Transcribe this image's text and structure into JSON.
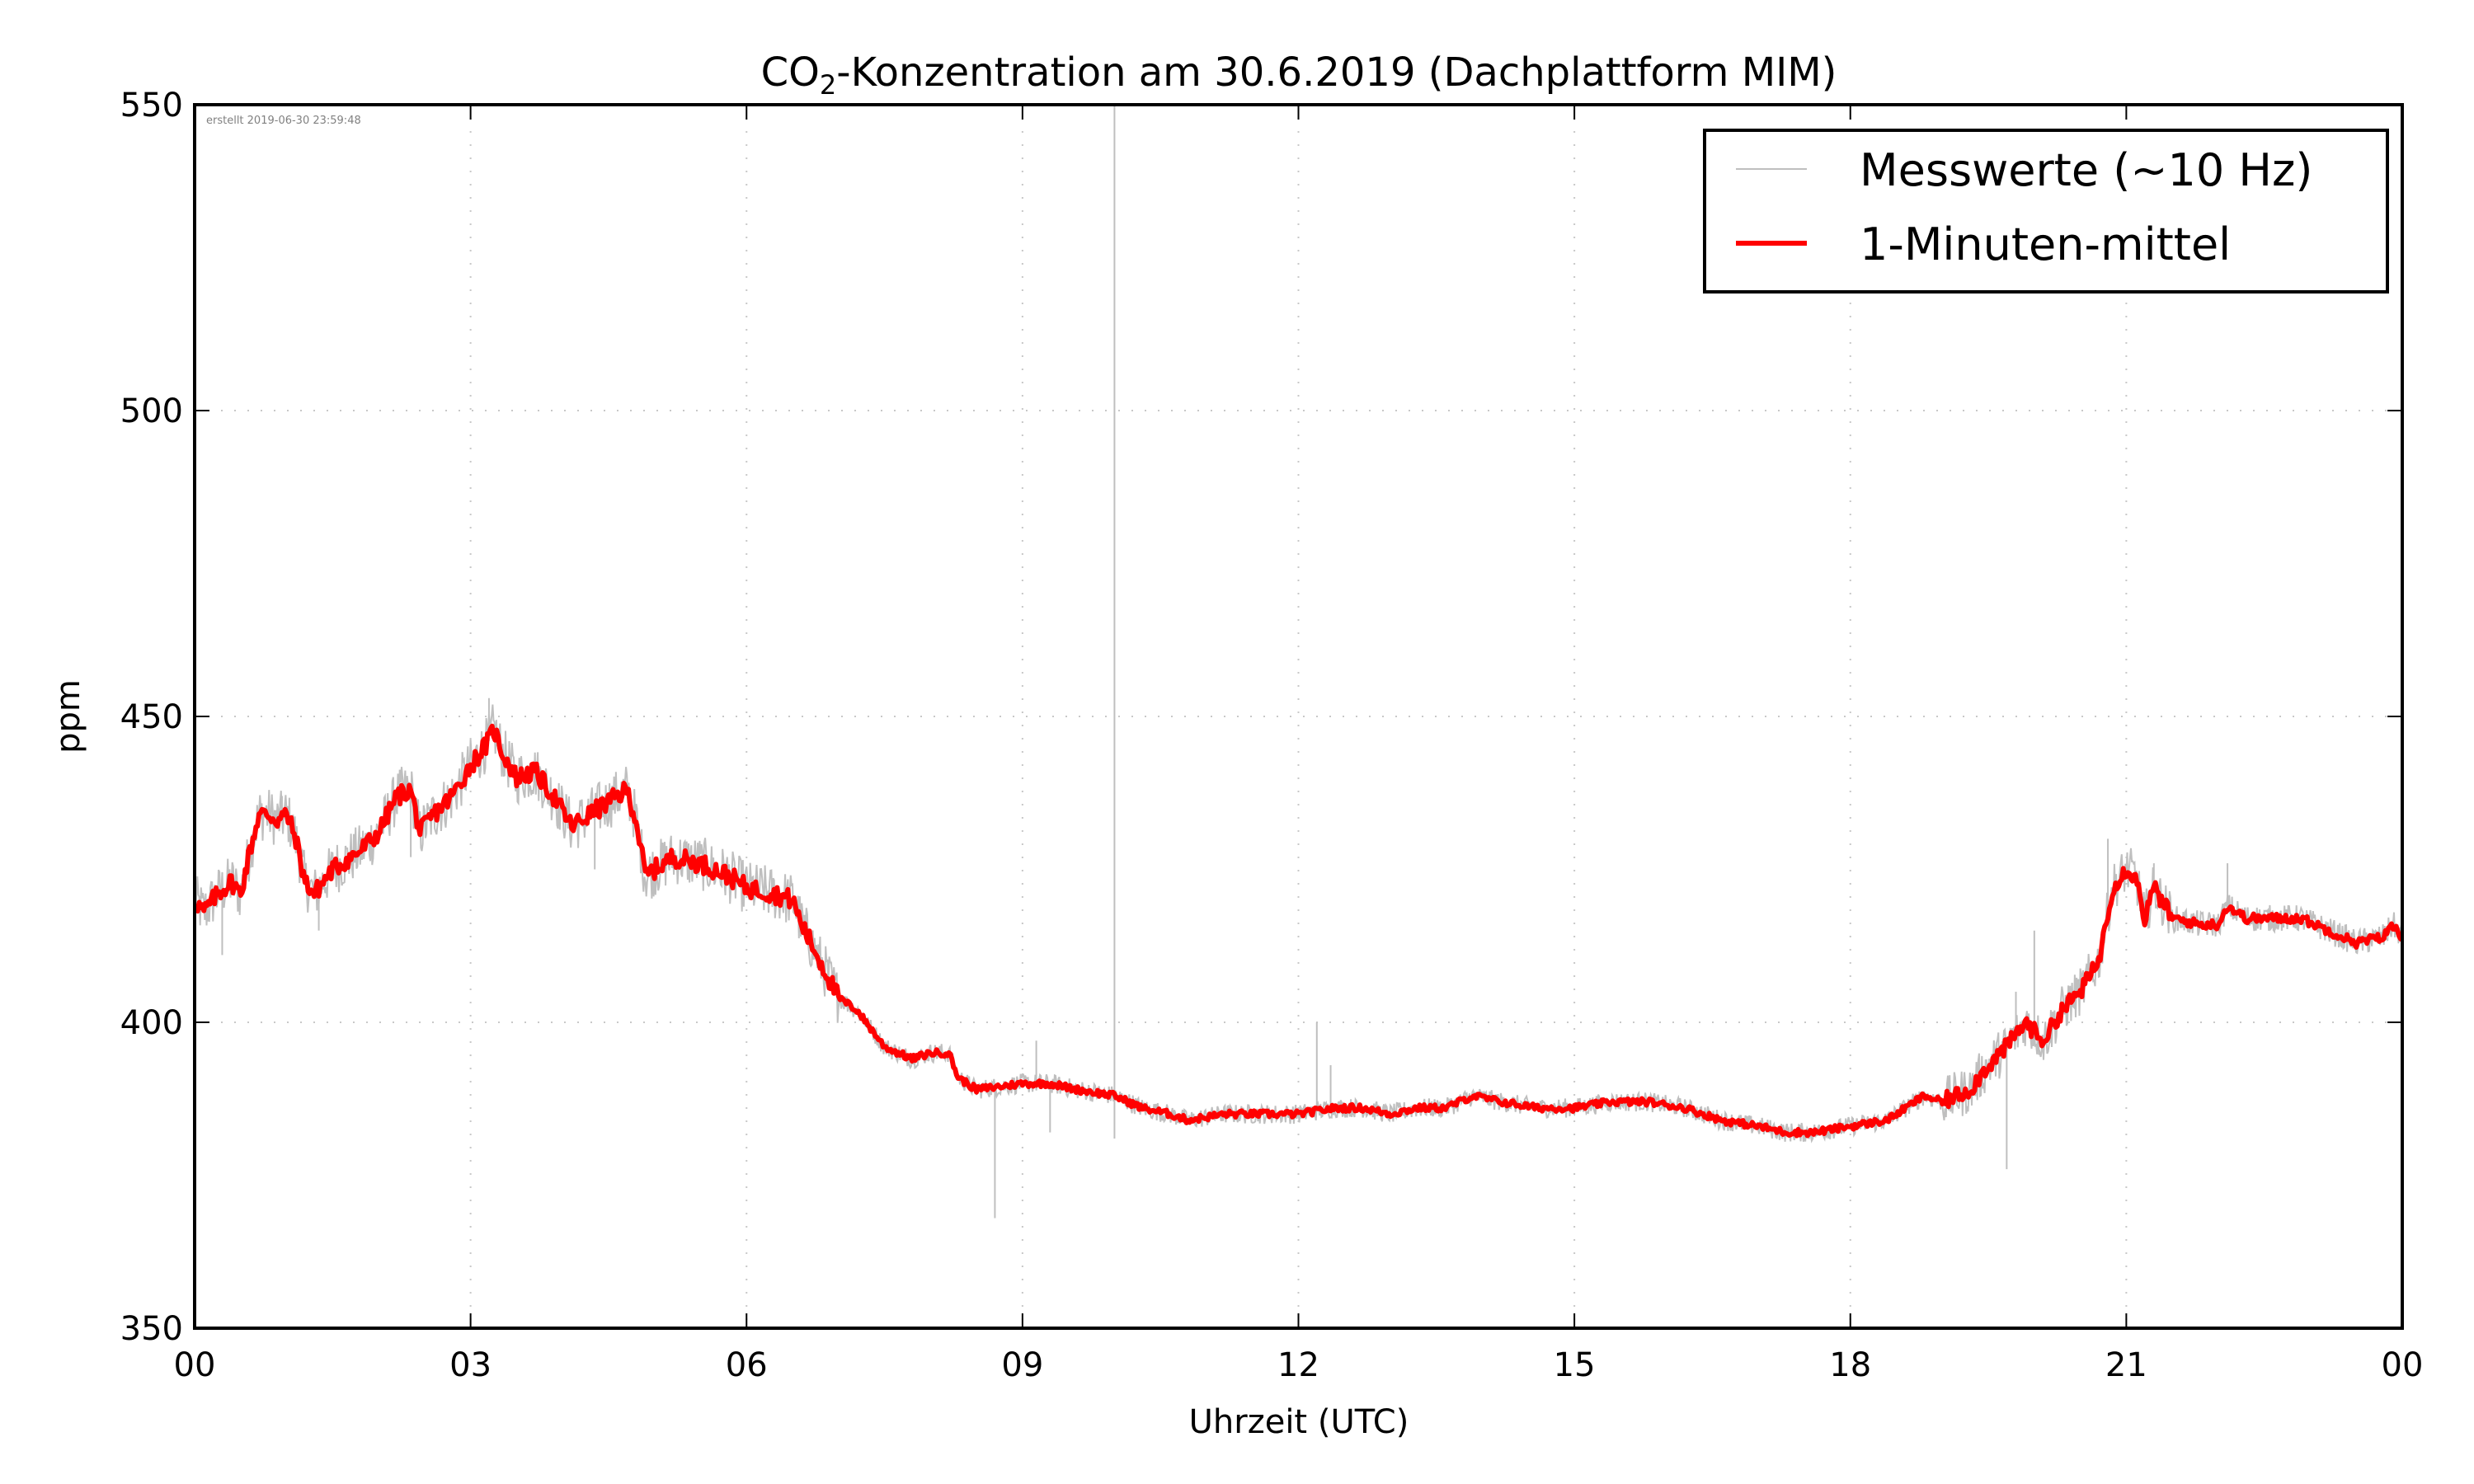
{
  "chart_data": {
    "type": "line",
    "title": "CO₂-Konzentration am 30.6.2019 (Dachplattform MIM)",
    "title_parts": {
      "prefix": "CO",
      "subscript": "2",
      "suffix": "-Konzentration am 30.6.2019 (Dachplattform MIM)"
    },
    "xlabel": "Uhrzeit (UTC)",
    "ylabel": "ppm",
    "xlim": [
      0,
      24
    ],
    "ylim": [
      350,
      550
    ],
    "x_unit": "hours UTC",
    "xticks": [
      0,
      3,
      6,
      9,
      12,
      15,
      18,
      21,
      24
    ],
    "xtick_labels": [
      "00",
      "03",
      "06",
      "09",
      "12",
      "15",
      "18",
      "21",
      "00"
    ],
    "yticks": [
      350,
      400,
      450,
      500,
      550
    ],
    "ytick_labels": [
      "350",
      "400",
      "450",
      "500",
      "550"
    ],
    "grid": true,
    "legend_position": "top-right",
    "annotation": "erstellt 2019-06-30 23:59:48",
    "series": [
      {
        "name": "Messwerte (~10 Hz)",
        "color": "#bfbfbf",
        "style": "thin",
        "spikes": [
          {
            "x": 0.3,
            "y": 411
          },
          {
            "x": 0.95,
            "y": 437
          },
          {
            "x": 1.35,
            "y": 415
          },
          {
            "x": 2.35,
            "y": 427
          },
          {
            "x": 3.2,
            "y": 453
          },
          {
            "x": 4.35,
            "y": 425
          },
          {
            "x": 8.7,
            "y": 368
          },
          {
            "x": 9.15,
            "y": 397
          },
          {
            "x": 9.3,
            "y": 382
          },
          {
            "x": 10.0,
            "y": 550
          },
          {
            "x": 10.0,
            "y": 381
          },
          {
            "x": 12.2,
            "y": 400
          },
          {
            "x": 12.35,
            "y": 393
          },
          {
            "x": 19.7,
            "y": 376
          },
          {
            "x": 19.8,
            "y": 405
          },
          {
            "x": 20.0,
            "y": 415
          },
          {
            "x": 20.8,
            "y": 430
          },
          {
            "x": 21.3,
            "y": 426
          },
          {
            "x": 22.1,
            "y": 426
          }
        ]
      },
      {
        "name": "1-Minuten-mittel",
        "color": "#ff0000",
        "style": "thick",
        "x": [
          0.0,
          0.1,
          0.25,
          0.4,
          0.5,
          0.6,
          0.7,
          0.8,
          0.9,
          1.0,
          1.1,
          1.2,
          1.3,
          1.5,
          1.8,
          2.0,
          2.2,
          2.35,
          2.45,
          2.6,
          2.8,
          3.0,
          3.1,
          3.2,
          3.25,
          3.35,
          3.5,
          3.7,
          3.9,
          4.1,
          4.3,
          4.5,
          4.7,
          4.8,
          4.9,
          5.0,
          5.2,
          5.5,
          5.8,
          6.0,
          6.3,
          6.5,
          6.6,
          6.8,
          7.0,
          7.2,
          7.5,
          7.8,
          8.0,
          8.2,
          8.3,
          8.5,
          9.0,
          9.3,
          9.6,
          10.0,
          10.3,
          10.6,
          10.8,
          11.2,
          11.6,
          12.0,
          12.4,
          12.7,
          13.0,
          13.3,
          13.6,
          13.9,
          14.2,
          14.6,
          15.0,
          15.4,
          15.8,
          16.2,
          16.6,
          17.0,
          17.3,
          17.6,
          18.0,
          18.4,
          18.6,
          18.8,
          19.0,
          19.3,
          19.5,
          19.7,
          19.9,
          20.1,
          20.3,
          20.5,
          20.7,
          20.85,
          21.0,
          21.1,
          21.2,
          21.3,
          21.5,
          21.8,
          22.0,
          22.1,
          22.3,
          22.6,
          22.9,
          23.2,
          23.5,
          23.8,
          23.9,
          24.0
        ],
        "values": [
          420,
          418,
          421,
          423,
          421,
          428,
          434,
          434,
          433,
          434,
          430,
          423,
          421,
          425,
          428,
          431,
          437,
          438,
          431,
          434,
          437,
          442,
          444,
          446,
          448,
          444,
          440,
          441,
          437,
          432,
          434,
          436,
          438,
          433,
          424,
          425,
          427,
          426,
          424,
          422,
          421,
          420,
          416,
          410,
          404,
          402,
          396,
          394,
          395,
          395,
          391,
          389,
          390,
          390,
          389,
          388,
          386,
          385,
          384,
          385,
          385,
          385,
          386,
          386,
          385,
          386,
          386,
          388,
          387,
          386,
          386,
          387,
          387,
          386,
          384,
          383,
          382,
          382,
          383,
          384,
          386,
          388,
          387,
          389,
          393,
          396,
          400,
          397,
          402,
          405,
          410,
          422,
          425,
          424,
          417,
          422,
          417,
          416,
          416,
          419,
          417,
          417,
          417,
          415,
          413,
          414,
          416,
          414
        ]
      }
    ]
  }
}
